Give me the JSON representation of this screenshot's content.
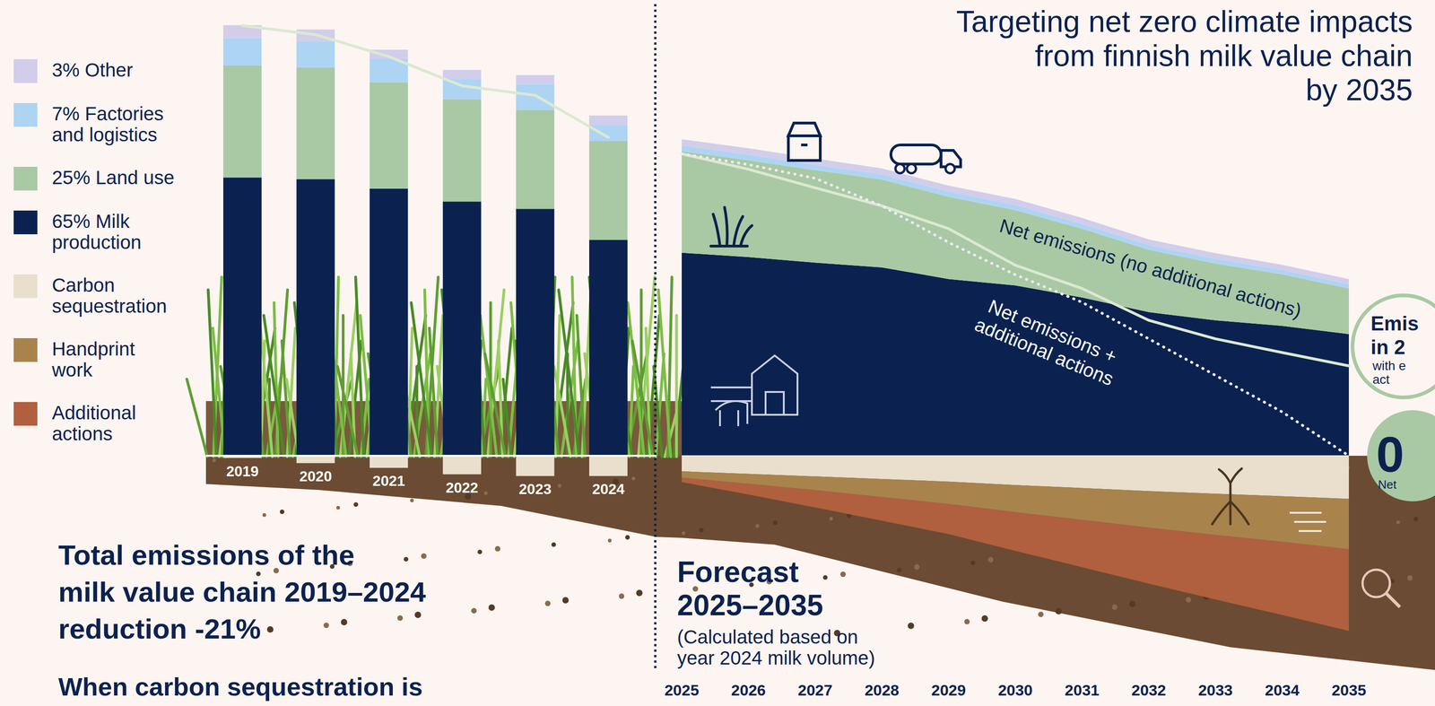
{
  "chart_data": [
    {
      "type": "bar",
      "title": "Total emissions of the\nmilk value chain 2019–2024\nreduction -21%",
      "subtitle": "When carbon sequestration is",
      "categories": [
        "2019",
        "2020",
        "2021",
        "2022",
        "2023",
        "2024"
      ],
      "stacked": true,
      "series": [
        {
          "color": "#d2cdea",
          "values": [
            3,
            2.8,
            2.1,
            2.1,
            2.1,
            2.1
          ]
        },
        {
          "color": "#aed4f3",
          "values": [
            6.4,
            6,
            5.5,
            4.7,
            6,
            3.8
          ]
        },
        {
          "color": "#a9c9a4",
          "values": [
            26,
            26,
            24.7,
            23.8,
            23,
            23
          ]
        },
        {
          "color": "#0b2250",
          "values": [
            64.7,
            64.3,
            62.1,
            59.1,
            57.4,
            50.2
          ]
        },
        {
          "color": "#e9dfcc",
          "values": [
            -0.5,
            -1.7,
            -2.8,
            -4.3,
            -4.7,
            -4.7
          ]
        },
        {
          "type": "line",
          "line_style": "solid",
          "color": "#dbe9d1",
          "values": [
            100,
            97.9,
            92.8,
            86,
            83.8,
            74
          ]
        }
      ],
      "ylim": [
        -50,
        105
      ],
      "yticks": [
        0
      ],
      "tick_labels": "x"
    },
    {
      "type": "area",
      "title": "Targeting net zero climate impacts\nfrom finnish milk value chain\nby 2035",
      "subtitle": "Forecast\n2025–2035",
      "annotations": [
        {
          "text": "(Calculated based on\nyear 2024 milk volume)"
        },
        {
          "text": "Emis\nin 2"
        },
        {
          "text": "with e\nact"
        },
        {
          "text": "0"
        },
        {
          "text": "Net"
        }
      ],
      "categories": [
        "2025",
        "2026",
        "2027",
        "2028",
        "2029",
        "2030",
        "2031",
        "2032",
        "2033",
        "2034",
        "2035"
      ],
      "stacked": true,
      "legend": "left",
      "series": [
        {
          "name": "3% Other",
          "color": "#d2cdea",
          "values": [
            1.5,
            1.5,
            1.5,
            1.4,
            1.4,
            1.4,
            1.4,
            1.3,
            1.3,
            1.2,
            1.2
          ]
        },
        {
          "name": "7% Factories\nand logistics",
          "color": "#aed4f3",
          "values": [
            1.3,
            1.3,
            1.2,
            1.2,
            1.2,
            1.2,
            1.1,
            1.1,
            1.1,
            1,
            1
          ]
        },
        {
          "name": "25% Land use",
          "color": "#a9c9a4",
          "values": [
            23.6,
            22.5,
            21.5,
            20.4,
            19.1,
            17.5,
            16,
            14.5,
            13.2,
            12,
            10.6
          ]
        },
        {
          "name": "65% Milk\nproduction",
          "color": "#0b2250",
          "values": [
            47.2,
            46.2,
            44.9,
            43.8,
            41.1,
            39.6,
            36.8,
            33.4,
            31.5,
            30.2,
            28.3
          ]
        },
        {
          "name": "Carbon\nsequestration",
          "color": "#e9dfcc",
          "values": [
            -3.6,
            -4.2,
            -4.8,
            -5.4,
            -6,
            -6.8,
            -7.5,
            -8.2,
            -8.8,
            -9.4,
            -10
          ]
        },
        {
          "name": "Handprint\nwork",
          "color": "#a9834c",
          "values": [
            -1.5,
            -2.3,
            -3.2,
            -4.2,
            -5.2,
            -6.3,
            -7.4,
            -8.5,
            -9.6,
            -10.6,
            -11.7
          ]
        },
        {
          "name": "Additional\nactions",
          "color": "#b0603f",
          "values": [
            -1,
            -2.5,
            -4,
            -5.5,
            -7,
            -9,
            -11,
            -13,
            -15,
            -17,
            -19
          ]
        },
        {
          "name": "Net emissions (no additional actions)",
          "type": "line",
          "line_style": "solid",
          "color": "#dbe9d1",
          "values": [
            70.2,
            66.6,
            62.3,
            58.1,
            52.8,
            44.3,
            38.9,
            31.5,
            27.2,
            24,
            20.9
          ]
        },
        {
          "name": "Net emissions +\nadditional actions",
          "type": "line",
          "line_style": "dotted",
          "color": "#eeeaf4",
          "values": [
            70.2,
            67.7,
            64.5,
            58.1,
            49.6,
            42.1,
            35.7,
            27.2,
            18.7,
            10.2,
            0
          ]
        }
      ],
      "ylim": [
        -50,
        105
      ],
      "yticks": [
        0
      ],
      "tick_labels": "x"
    }
  ]
}
